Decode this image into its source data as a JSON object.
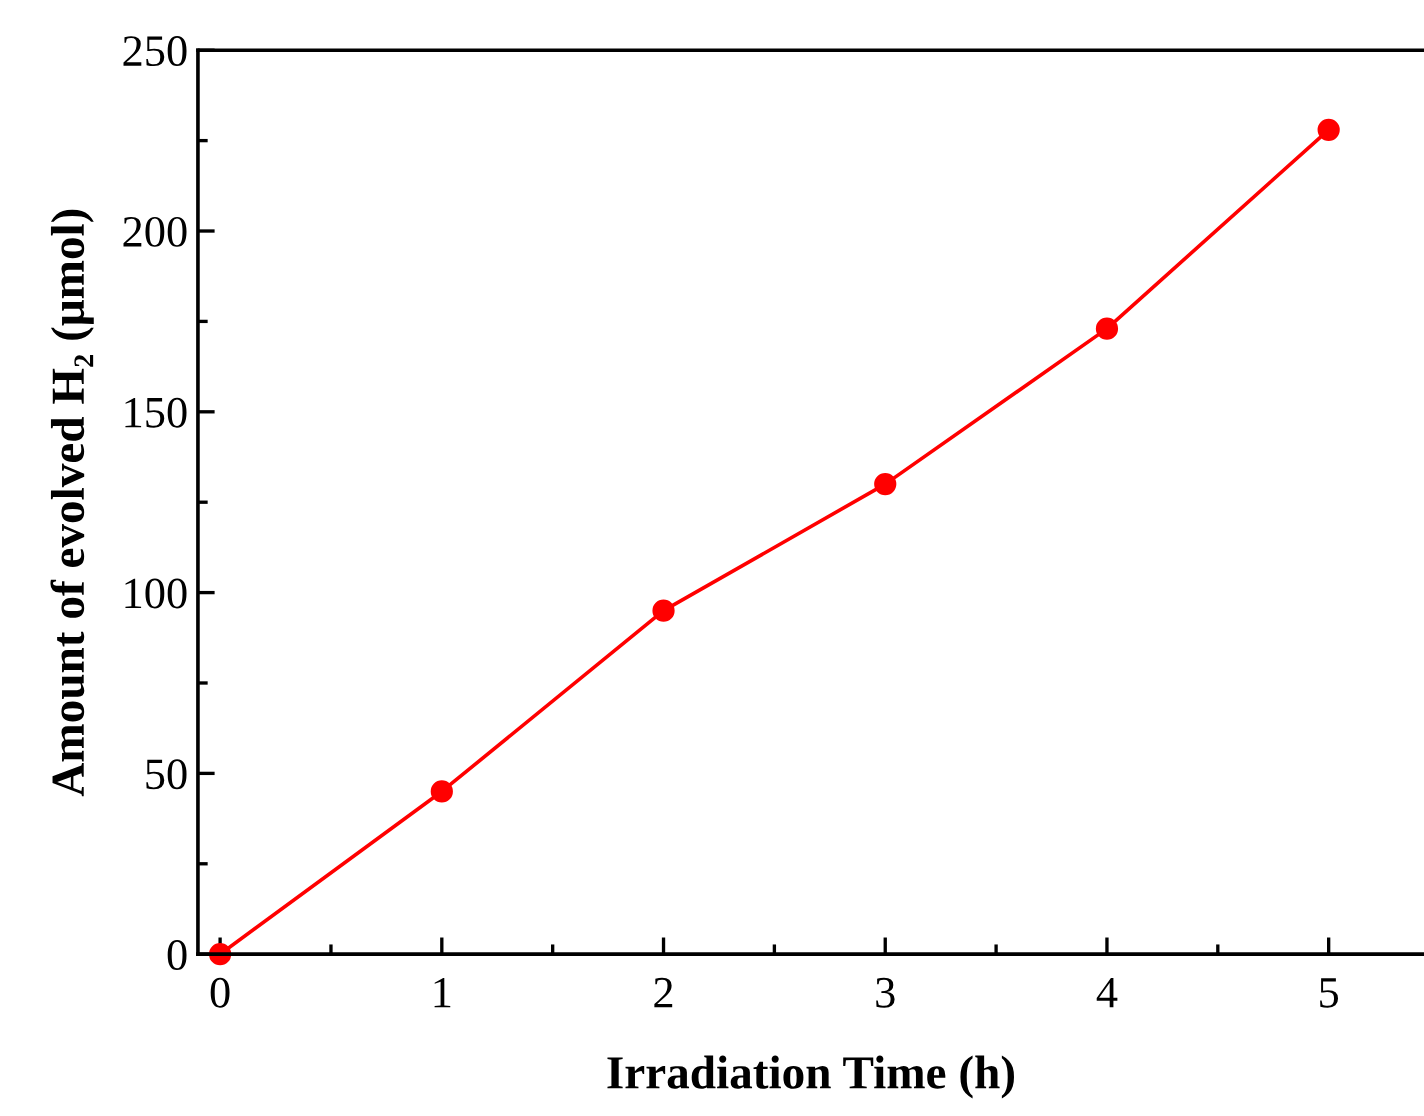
{
  "chart_data": {
    "type": "line",
    "xlabel": "Irradiation Time (h)",
    "ylabel": "Amount of evolved H₂ (μmol)",
    "x": [
      0,
      1,
      2,
      3,
      4,
      5
    ],
    "series": [
      {
        "color": "#ff0000",
        "values": [
          0,
          45,
          95,
          130,
          173,
          228
        ]
      }
    ],
    "xlim": [
      -0.1,
      5.43
    ],
    "ylim": [
      0,
      250
    ],
    "xticks": [
      0,
      1,
      2,
      3,
      4,
      5
    ],
    "yticks": [
      0,
      50,
      100,
      150,
      200,
      250
    ],
    "marker": "circle",
    "line_style": "solid",
    "grid": false,
    "legend": false
  }
}
